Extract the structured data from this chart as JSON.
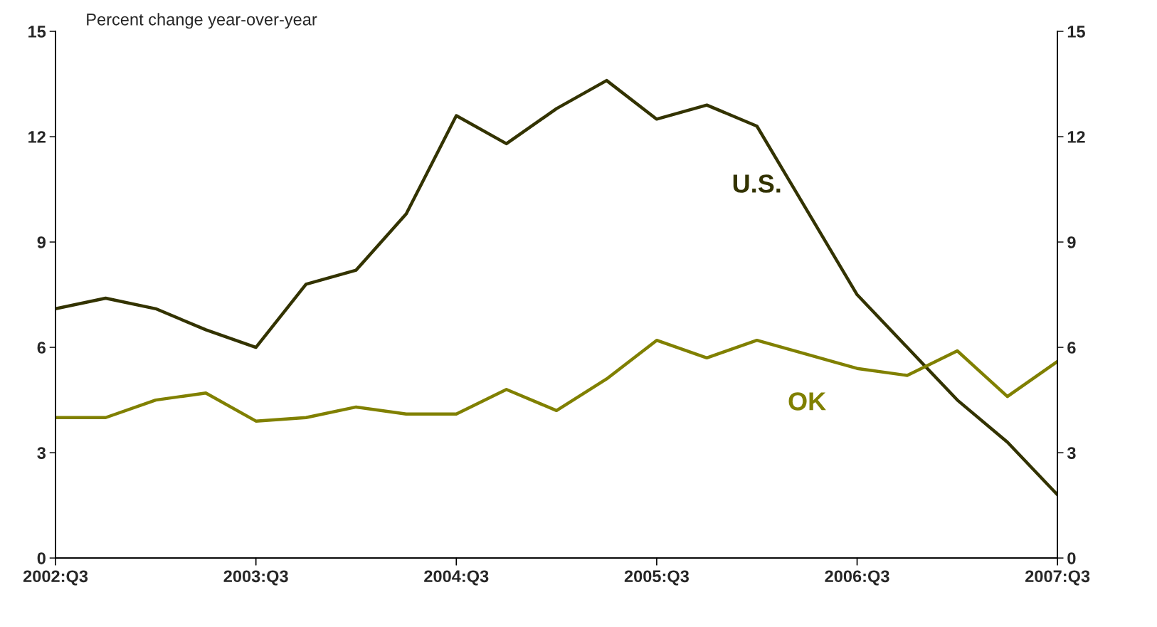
{
  "chart_data": {
    "type": "line",
    "ylabel": "Percent change year-over-year",
    "categories": [
      "2002:Q3",
      null,
      null,
      null,
      "2003:Q3",
      null,
      null,
      null,
      "2004:Q3",
      null,
      null,
      null,
      "2005:Q3",
      null,
      null,
      null,
      "2006:Q3",
      null,
      null,
      null,
      "2007:Q3"
    ],
    "series": [
      {
        "name": "U.S.",
        "color": "#333300",
        "values": [
          7.1,
          7.4,
          7.1,
          6.5,
          6.0,
          7.8,
          8.2,
          9.8,
          12.6,
          11.8,
          12.8,
          13.6,
          12.5,
          12.9,
          12.3,
          9.9,
          7.5,
          6.0,
          4.5,
          3.3,
          1.8
        ]
      },
      {
        "name": "OK",
        "color": "#808000",
        "values": [
          4.0,
          4.0,
          4.5,
          4.7,
          3.9,
          4.0,
          4.3,
          4.1,
          4.1,
          4.8,
          4.2,
          5.1,
          6.2,
          5.7,
          6.2,
          5.8,
          5.4,
          5.2,
          5.9,
          4.6,
          5.6
        ]
      }
    ],
    "ylim": [
      0,
      15
    ],
    "yticks": [
      0,
      3,
      6,
      9,
      12,
      15
    ],
    "y2lim": [
      0,
      15
    ],
    "y2ticks": [
      0,
      3,
      6,
      9,
      12,
      15
    ],
    "grid": false,
    "legend": false,
    "marker": "none",
    "line_style": "solid"
  }
}
